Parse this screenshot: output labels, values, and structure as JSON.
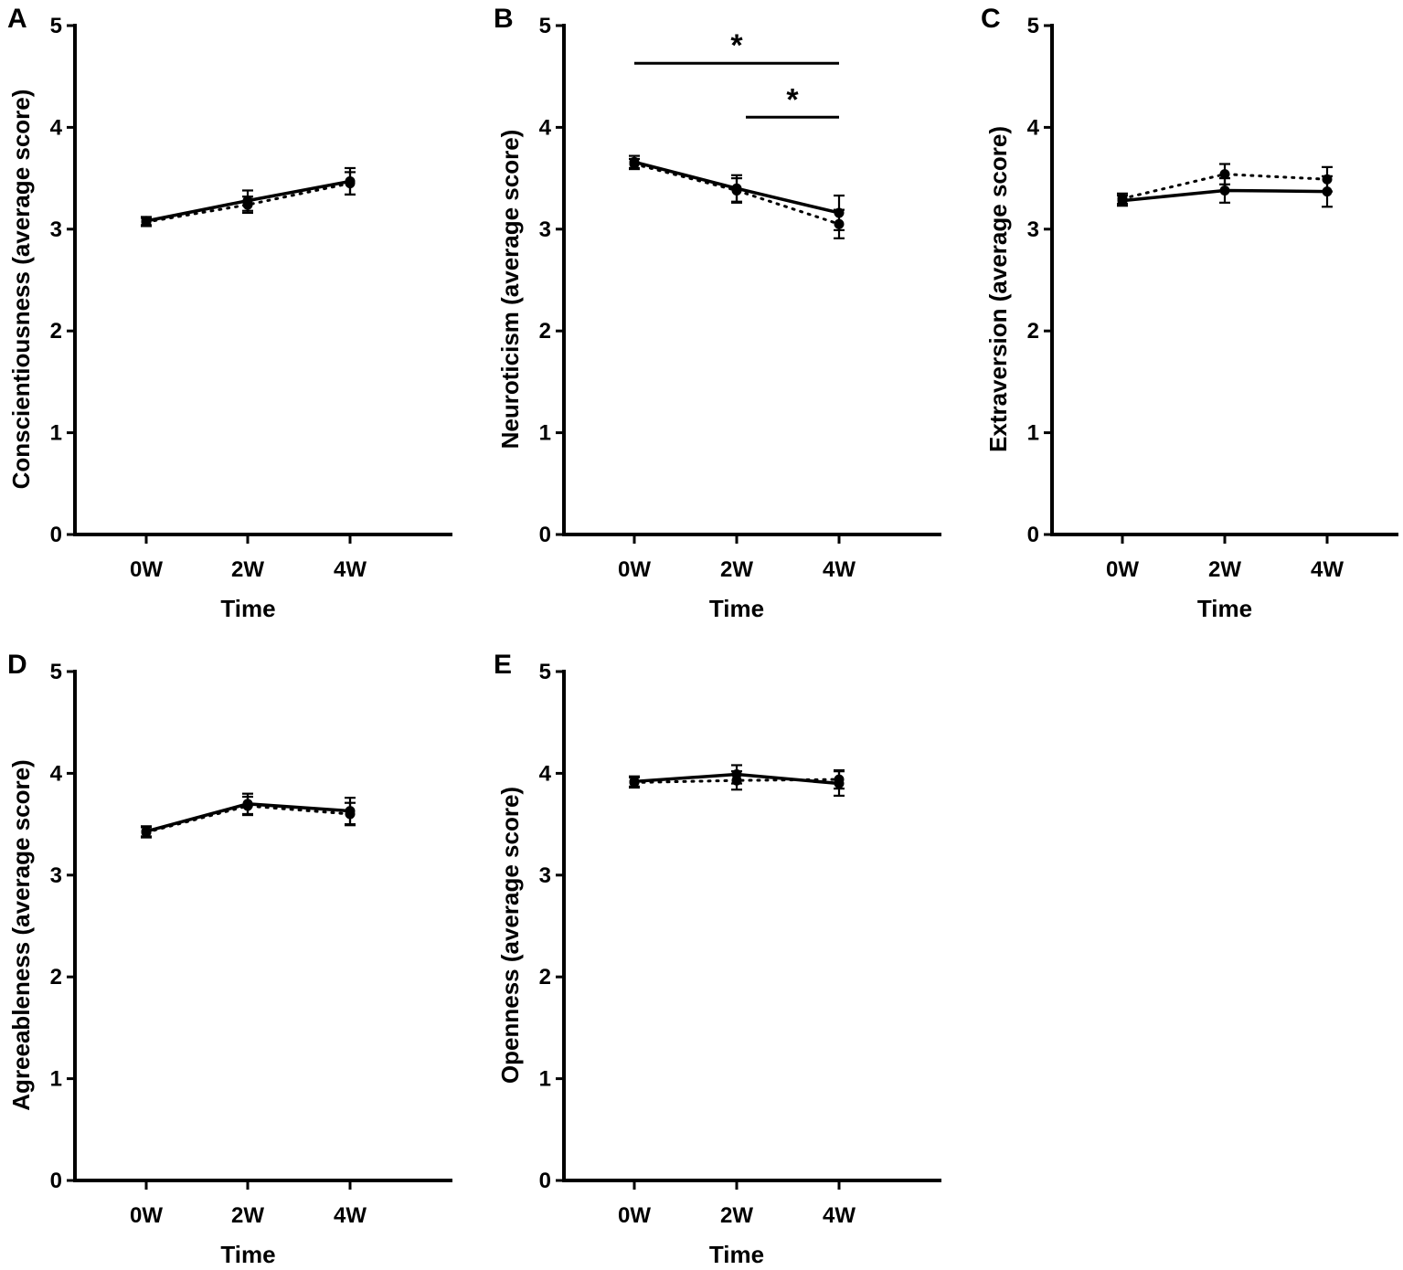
{
  "figure": {
    "panels": [
      "A",
      "B",
      "C",
      "D",
      "E"
    ]
  },
  "chart_data": [
    {
      "panel": "A",
      "type": "line",
      "xlabel": "Time",
      "ylabel": "Conscientiousness (average score)",
      "categories": [
        "0W",
        "2W",
        "4W"
      ],
      "ylim": [
        0,
        5
      ],
      "yticks": [
        0,
        1,
        2,
        3,
        4,
        5
      ],
      "series": [
        {
          "name": "solid",
          "style": "solid",
          "values": [
            3.08,
            3.28,
            3.47
          ],
          "err": [
            0.04,
            0.1,
            0.13
          ]
        },
        {
          "name": "dotted",
          "style": "dotted",
          "values": [
            3.07,
            3.24,
            3.45
          ],
          "err": [
            0.04,
            0.08,
            0.11
          ]
        }
      ],
      "significance": []
    },
    {
      "panel": "B",
      "type": "line",
      "xlabel": "Time",
      "ylabel": "Neuroticism (average score)",
      "categories": [
        "0W",
        "2W",
        "4W"
      ],
      "ylim": [
        0,
        5
      ],
      "yticks": [
        0,
        1,
        2,
        3,
        4,
        5
      ],
      "series": [
        {
          "name": "solid",
          "style": "solid",
          "values": [
            3.66,
            3.4,
            3.16
          ],
          "err": [
            0.06,
            0.13,
            0.17
          ]
        },
        {
          "name": "dotted",
          "style": "dotted",
          "values": [
            3.64,
            3.38,
            3.05
          ],
          "err": [
            0.05,
            0.12,
            0.14
          ]
        }
      ],
      "significance": [
        {
          "from": 0,
          "to": 2,
          "y": 4.63,
          "label": "*"
        },
        {
          "from": 1,
          "to": 2,
          "y": 4.1,
          "label": "*"
        }
      ]
    },
    {
      "panel": "C",
      "type": "line",
      "xlabel": "Time",
      "ylabel": "Extraversion (average score)",
      "categories": [
        "0W",
        "2W",
        "4W"
      ],
      "ylim": [
        0,
        5
      ],
      "yticks": [
        0,
        1,
        2,
        3,
        4,
        5
      ],
      "series": [
        {
          "name": "solid",
          "style": "solid",
          "values": [
            3.28,
            3.38,
            3.37
          ],
          "err": [
            0.05,
            0.12,
            0.15
          ]
        },
        {
          "name": "dotted",
          "style": "dotted",
          "values": [
            3.3,
            3.54,
            3.49
          ],
          "err": [
            0.05,
            0.1,
            0.12
          ]
        }
      ],
      "significance": []
    },
    {
      "panel": "D",
      "type": "line",
      "xlabel": "Time",
      "ylabel": "Agreeableness (average score)",
      "categories": [
        "0W",
        "2W",
        "4W"
      ],
      "ylim": [
        0,
        5
      ],
      "yticks": [
        0,
        1,
        2,
        3,
        4,
        5
      ],
      "series": [
        {
          "name": "solid",
          "style": "solid",
          "values": [
            3.43,
            3.7,
            3.63
          ],
          "err": [
            0.05,
            0.1,
            0.13
          ]
        },
        {
          "name": "dotted",
          "style": "dotted",
          "values": [
            3.42,
            3.68,
            3.6
          ],
          "err": [
            0.05,
            0.09,
            0.11
          ]
        }
      ],
      "significance": []
    },
    {
      "panel": "E",
      "type": "line",
      "xlabel": "Time",
      "ylabel": "Openness (average score)",
      "categories": [
        "0W",
        "2W",
        "4W"
      ],
      "ylim": [
        0,
        5
      ],
      "yticks": [
        0,
        1,
        2,
        3,
        4,
        5
      ],
      "series": [
        {
          "name": "solid",
          "style": "solid",
          "values": [
            3.92,
            3.99,
            3.9
          ],
          "err": [
            0.05,
            0.09,
            0.12
          ]
        },
        {
          "name": "dotted",
          "style": "dotted",
          "values": [
            3.91,
            3.93,
            3.94
          ],
          "err": [
            0.05,
            0.09,
            0.09
          ]
        }
      ],
      "significance": []
    }
  ]
}
